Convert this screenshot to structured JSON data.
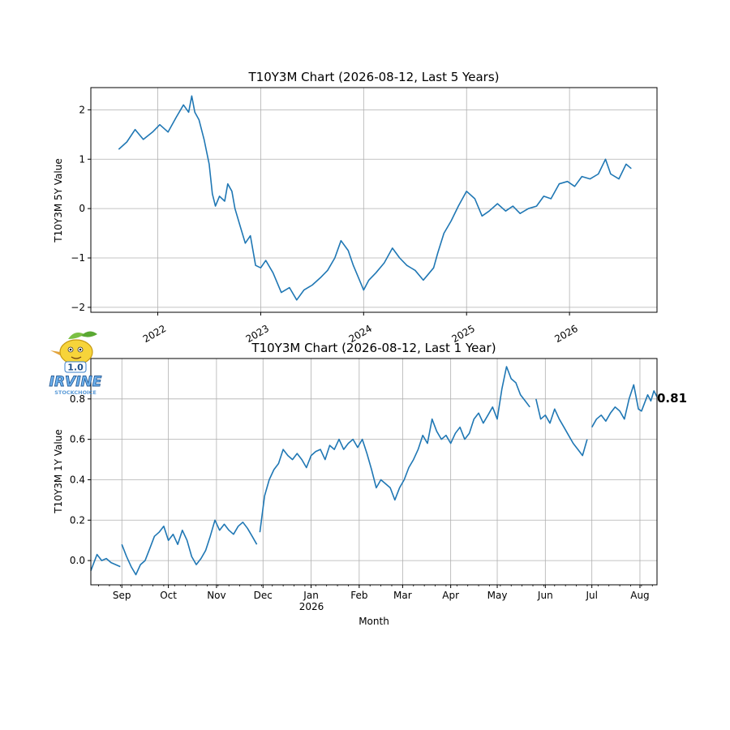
{
  "chart_data": [
    {
      "type": "line",
      "title": "T10Y3M Chart (2026-08-12, Last 5 Years)",
      "xlabel": "",
      "ylabel": "T10Y3M 5Y Value",
      "xlim": [
        2021.35,
        2026.85
      ],
      "ylim": [
        -2.1,
        2.45
      ],
      "x_ticks": [
        2022,
        2023,
        2024,
        2025,
        2026
      ],
      "x_tick_labels": [
        "2022",
        "2023",
        "2024",
        "2025",
        "2026"
      ],
      "y_ticks": [
        -2,
        -1,
        0,
        1,
        2
      ],
      "y_tick_labels": [
        "−2",
        "−1",
        "0",
        "1",
        "2"
      ],
      "grid": true,
      "series": [
        {
          "color": "#1f77b4",
          "x": [
            2021.62,
            2021.7,
            2021.78,
            2021.86,
            2021.95,
            2022.02,
            2022.1,
            2022.18,
            2022.25,
            2022.3,
            2022.33,
            2022.36,
            2022.4,
            2022.45,
            2022.5,
            2022.53,
            2022.56,
            2022.6,
            2022.65,
            2022.68,
            2022.72,
            2022.75,
            2022.8,
            2022.85,
            2022.9,
            2022.95,
            2023.0,
            2023.05,
            2023.12,
            2023.2,
            2023.28,
            2023.35,
            2023.42,
            2023.5,
            2023.58,
            2023.65,
            2023.72,
            2023.78,
            2023.85,
            2023.9,
            2023.95,
            2024.0,
            2024.05,
            2024.12,
            2024.2,
            2024.28,
            2024.35,
            2024.42,
            2024.5,
            2024.58,
            2024.62,
            2024.68,
            2024.72,
            2024.78,
            2024.85,
            2024.92,
            2025.0,
            2025.08,
            2025.15,
            2025.22,
            2025.3,
            2025.38,
            2025.45,
            2025.52,
            2025.6,
            2025.68,
            2025.75,
            2025.82,
            2025.9,
            2025.98,
            2026.05,
            2026.12,
            2026.2,
            2026.28,
            2026.35,
            2026.4,
            2026.48,
            2026.55,
            2026.6
          ],
          "y": [
            1.2,
            1.35,
            1.6,
            1.4,
            1.55,
            1.7,
            1.55,
            1.85,
            2.1,
            1.95,
            2.28,
            1.95,
            1.8,
            1.4,
            0.9,
            0.3,
            0.05,
            0.25,
            0.15,
            0.5,
            0.35,
            0.0,
            -0.35,
            -0.7,
            -0.55,
            -1.15,
            -1.2,
            -1.05,
            -1.3,
            -1.7,
            -1.6,
            -1.85,
            -1.65,
            -1.55,
            -1.4,
            -1.25,
            -1.0,
            -0.65,
            -0.85,
            -1.15,
            -1.4,
            -1.65,
            -1.45,
            -1.3,
            -1.1,
            -0.8,
            -1.0,
            -1.15,
            -1.25,
            -1.45,
            -1.35,
            -1.2,
            -0.9,
            -0.5,
            -0.25,
            0.05,
            0.35,
            0.2,
            -0.15,
            -0.05,
            0.1,
            -0.05,
            0.05,
            -0.1,
            0.0,
            0.05,
            0.25,
            0.2,
            0.5,
            0.55,
            0.45,
            0.65,
            0.6,
            0.7,
            1.0,
            0.7,
            0.6,
            0.9,
            0.81
          ]
        }
      ]
    },
    {
      "type": "line",
      "title": "T10Y3M Chart (2026-08-12, Last 1 Year)",
      "xlabel": "Month",
      "ylabel": "T10Y3M 1Y Value",
      "xlim": [
        "2025-08-12",
        "2026-08-12"
      ],
      "ylim": [
        -0.12,
        1.0
      ],
      "x_ticks": [
        "2025-09-01",
        "2025-10-01",
        "2025-11-01",
        "2025-12-01",
        "2026-01-01",
        "2026-02-01",
        "2026-03-01",
        "2026-04-01",
        "2026-05-01",
        "2026-06-01",
        "2026-07-01",
        "2026-08-01"
      ],
      "x_tick_labels": [
        "Sep",
        "Oct",
        "Nov",
        "Dec",
        "Jan",
        "Feb",
        "Mar",
        "Apr",
        "May",
        "Jun",
        "Jul",
        "Aug"
      ],
      "x_tick_sublabel": "2026",
      "y_ticks": [
        0.0,
        0.2,
        0.4,
        0.6,
        0.8
      ],
      "y_tick_labels": [
        "0.0",
        "0.2",
        "0.4",
        "0.6",
        "0.8"
      ],
      "grid": true,
      "last_value_label": "0.81",
      "series": [
        {
          "color": "#1f77b4",
          "segments": [
            {
              "x": [
                "2025-08-12",
                "2025-08-14",
                "2025-08-16",
                "2025-08-19",
                "2025-08-22",
                "2025-08-25",
                "2025-08-28",
                "2025-08-31"
              ],
              "y": [
                -0.05,
                -0.01,
                0.03,
                0.0,
                0.01,
                -0.01,
                -0.02,
                -0.03
              ]
            },
            {
              "x": [
                "2025-09-01",
                "2025-09-04",
                "2025-09-07",
                "2025-09-10",
                "2025-09-13",
                "2025-09-16",
                "2025-09-19",
                "2025-09-22",
                "2025-09-25",
                "2025-09-28",
                "2025-10-01",
                "2025-10-04",
                "2025-10-07",
                "2025-10-10",
                "2025-10-13",
                "2025-10-16",
                "2025-10-19",
                "2025-10-22",
                "2025-10-25",
                "2025-10-28",
                "2025-10-31",
                "2025-11-03",
                "2025-11-06",
                "2025-11-09",
                "2025-11-12",
                "2025-11-15",
                "2025-11-18",
                "2025-11-21",
                "2025-11-24",
                "2025-11-27"
              ],
              "y": [
                0.08,
                0.02,
                -0.03,
                -0.07,
                -0.02,
                0.0,
                0.06,
                0.12,
                0.14,
                0.17,
                0.1,
                0.13,
                0.08,
                0.15,
                0.1,
                0.02,
                -0.02,
                0.01,
                0.05,
                0.12,
                0.2,
                0.15,
                0.18,
                0.15,
                0.13,
                0.17,
                0.19,
                0.16,
                0.12,
                0.08
              ]
            },
            {
              "x": [
                "2025-11-29",
                "2025-12-02",
                "2025-12-05",
                "2025-12-08",
                "2025-12-11",
                "2025-12-14",
                "2025-12-17",
                "2025-12-20",
                "2025-12-23",
                "2025-12-26",
                "2025-12-29",
                "2026-01-01",
                "2026-01-04",
                "2026-01-07",
                "2026-01-10",
                "2026-01-13",
                "2026-01-16",
                "2026-01-19",
                "2026-01-22",
                "2026-01-25",
                "2026-01-28",
                "2026-01-31",
                "2026-02-03",
                "2026-02-06",
                "2026-02-09",
                "2026-02-12",
                "2026-02-15",
                "2026-02-18",
                "2026-02-21",
                "2026-02-24",
                "2026-02-27",
                "2026-03-02",
                "2026-03-05",
                "2026-03-08",
                "2026-03-11",
                "2026-03-14",
                "2026-03-17",
                "2026-03-20",
                "2026-03-23",
                "2026-03-26",
                "2026-03-29",
                "2026-04-01",
                "2026-04-04",
                "2026-04-07",
                "2026-04-10",
                "2026-04-13",
                "2026-04-16",
                "2026-04-19",
                "2026-04-22",
                "2026-04-25",
                "2026-04-28",
                "2026-05-01",
                "2026-05-04",
                "2026-05-07",
                "2026-05-10",
                "2026-05-13",
                "2026-05-16",
                "2026-05-19",
                "2026-05-22"
              ],
              "y": [
                0.14,
                0.32,
                0.4,
                0.45,
                0.48,
                0.55,
                0.52,
                0.5,
                0.53,
                0.5,
                0.46,
                0.52,
                0.54,
                0.55,
                0.5,
                0.57,
                0.55,
                0.6,
                0.55,
                0.58,
                0.6,
                0.56,
                0.6,
                0.53,
                0.45,
                0.36,
                0.4,
                0.38,
                0.36,
                0.3,
                0.36,
                0.4,
                0.46,
                0.5,
                0.55,
                0.62,
                0.58,
                0.7,
                0.64,
                0.6,
                0.62,
                0.58,
                0.63,
                0.66,
                0.6,
                0.63,
                0.7,
                0.73,
                0.68,
                0.72,
                0.76,
                0.7,
                0.85,
                0.96,
                0.9,
                0.88,
                0.82,
                0.79,
                0.76
              ]
            },
            {
              "x": [
                "2026-05-26",
                "2026-05-29",
                "2026-06-01",
                "2026-06-04",
                "2026-06-07",
                "2026-06-10",
                "2026-06-13",
                "2026-06-16",
                "2026-06-19",
                "2026-06-22",
                "2026-06-25",
                "2026-06-28"
              ],
              "y": [
                0.8,
                0.7,
                0.72,
                0.68,
                0.75,
                0.7,
                0.66,
                0.62,
                0.58,
                0.55,
                0.52,
                0.6
              ]
            },
            {
              "x": [
                "2026-07-01",
                "2026-07-04",
                "2026-07-07",
                "2026-07-10",
                "2026-07-13",
                "2026-07-16",
                "2026-07-19",
                "2026-07-22",
                "2026-07-25",
                "2026-07-28",
                "2026-07-31",
                "2026-08-02",
                "2026-08-04",
                "2026-08-06",
                "2026-08-08",
                "2026-08-10",
                "2026-08-12"
              ],
              "y": [
                0.66,
                0.7,
                0.72,
                0.69,
                0.73,
                0.76,
                0.74,
                0.7,
                0.8,
                0.87,
                0.75,
                0.74,
                0.78,
                0.82,
                0.79,
                0.84,
                0.81
              ]
            }
          ]
        }
      ]
    }
  ],
  "logo": {
    "icon": "lemon-mascot-icon",
    "badge_text": "1.0",
    "wordmark": "IRVINE",
    "sub_wordmark": "STOCKCHOICE"
  }
}
